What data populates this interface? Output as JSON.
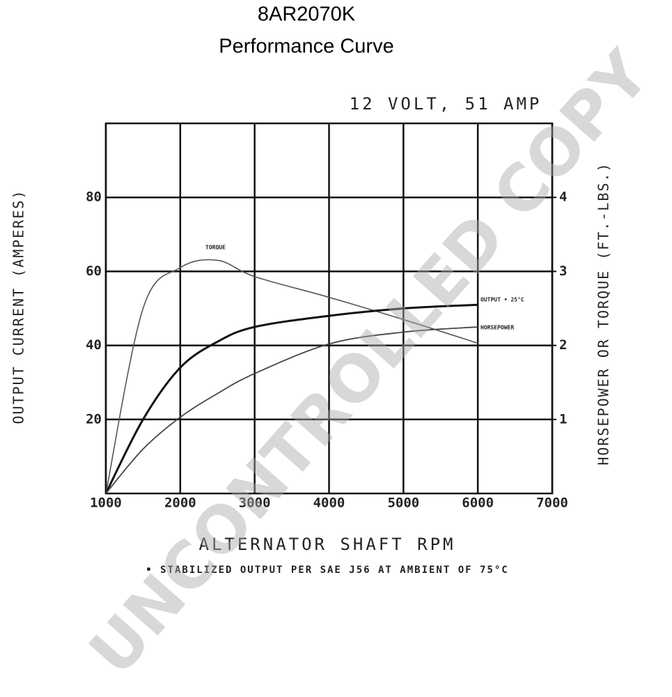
{
  "chart_data": {
    "type": "line",
    "title": "8AR2070K",
    "subtitle": "Performance Curve",
    "annotation": "12 VOLT, 51 AMP",
    "footnote": "• STABILIZED OUTPUT PER SAE J56 AT AMBIENT OF 75°C",
    "watermark": "UNCONTROLLED COPY",
    "xlabel": "ALTERNATOR SHAFT RPM",
    "ylabel": "OUTPUT CURRENT (AMPERES)",
    "y2label": "HORSEPOWER OR TORQUE (FT.-LBS.)",
    "x": [
      1000,
      1500,
      2000,
      2500,
      3000,
      4000,
      5000,
      6000
    ],
    "xlim": [
      1000,
      7000
    ],
    "xticks": [
      1000,
      2000,
      3000,
      4000,
      5000,
      6000,
      7000
    ],
    "ylim": [
      0,
      100
    ],
    "yticks": [
      20,
      40,
      60,
      80
    ],
    "y2lim": [
      0,
      5
    ],
    "y2ticks": [
      1,
      2,
      3,
      4
    ],
    "grid": true,
    "series": [
      {
        "name": "TORQUE",
        "color": "#555555",
        "axis": "y2",
        "values": [
          0,
          2.5,
          3.05,
          3.15,
          2.93,
          2.65,
          2.35,
          2.03
        ]
      },
      {
        "name": "OUTPUT • 25°C",
        "color": "#111111",
        "values": [
          0,
          20,
          34,
          41,
          45,
          48,
          50,
          51
        ]
      },
      {
        "name": "HORSEPOWER",
        "color": "#444444",
        "axis": "y2",
        "values": [
          0,
          0.6,
          1.03,
          1.35,
          1.62,
          2.02,
          2.18,
          2.25
        ]
      }
    ]
  }
}
